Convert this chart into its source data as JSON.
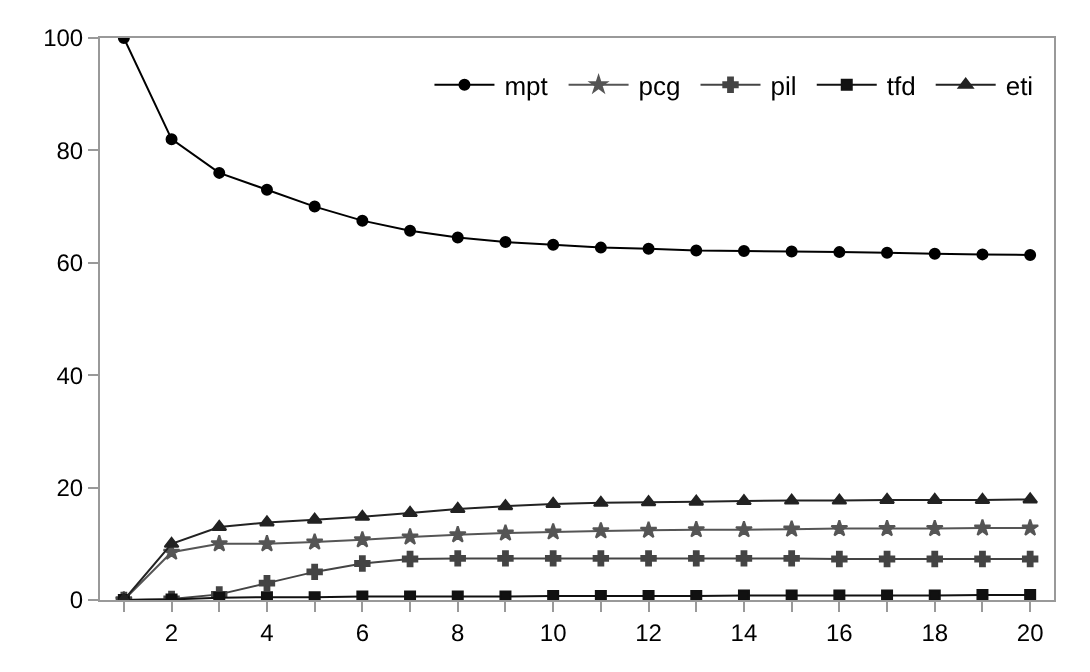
{
  "chart_data": {
    "type": "line",
    "x": [
      1,
      2,
      3,
      4,
      5,
      6,
      7,
      8,
      9,
      10,
      11,
      12,
      13,
      14,
      15,
      16,
      17,
      18,
      19,
      20
    ],
    "series": [
      {
        "name": "mpt",
        "color": "#000000",
        "marker": "circle",
        "values": [
          100,
          82,
          76,
          73,
          70,
          67.5,
          65.7,
          64.5,
          63.7,
          63.2,
          62.7,
          62.5,
          62.2,
          62.1,
          62.0,
          61.9,
          61.8,
          61.6,
          61.5,
          61.4
        ]
      },
      {
        "name": "pcg",
        "color": "#555555",
        "marker": "star",
        "values": [
          0,
          8.5,
          10,
          10,
          10.3,
          10.7,
          11.2,
          11.6,
          11.9,
          12.1,
          12.3,
          12.4,
          12.5,
          12.5,
          12.6,
          12.7,
          12.7,
          12.7,
          12.8,
          12.8
        ]
      },
      {
        "name": "pil",
        "color": "#444444",
        "marker": "cross",
        "values": [
          0,
          0.2,
          1,
          3,
          5,
          6.5,
          7.3,
          7.4,
          7.4,
          7.4,
          7.4,
          7.4,
          7.4,
          7.4,
          7.4,
          7.3,
          7.3,
          7.3,
          7.3,
          7.3
        ]
      },
      {
        "name": "tfd",
        "color": "#111111",
        "marker": "square",
        "values": [
          0,
          0.1,
          0.4,
          0.5,
          0.5,
          0.6,
          0.6,
          0.6,
          0.6,
          0.7,
          0.7,
          0.7,
          0.7,
          0.8,
          0.8,
          0.8,
          0.8,
          0.8,
          0.9,
          0.9
        ]
      },
      {
        "name": "eti",
        "color": "#222222",
        "marker": "triangle",
        "values": [
          0,
          10,
          13,
          13.8,
          14.3,
          14.8,
          15.5,
          16.2,
          16.7,
          17.1,
          17.3,
          17.4,
          17.5,
          17.6,
          17.7,
          17.7,
          17.8,
          17.8,
          17.8,
          17.9
        ]
      }
    ],
    "xlim": [
      0.5,
      20.5
    ],
    "xticks": [
      {
        "value": 1,
        "label": null
      },
      2,
      {
        "value": 3,
        "label": null
      },
      4,
      {
        "value": 5,
        "label": null
      },
      6,
      {
        "value": 7,
        "label": null
      },
      8,
      {
        "value": 9,
        "label": null
      },
      10,
      {
        "value": 11,
        "label": null
      },
      12,
      {
        "value": 13,
        "label": null
      },
      14,
      {
        "value": 15,
        "label": null
      },
      16,
      {
        "value": 17,
        "label": null
      },
      18,
      {
        "value": 19,
        "label": null
      },
      20
    ],
    "ylim": [
      0,
      100
    ],
    "yticks": [
      0,
      20,
      40,
      60,
      80,
      100
    ],
    "legend": "top right",
    "line_style": "solid"
  }
}
